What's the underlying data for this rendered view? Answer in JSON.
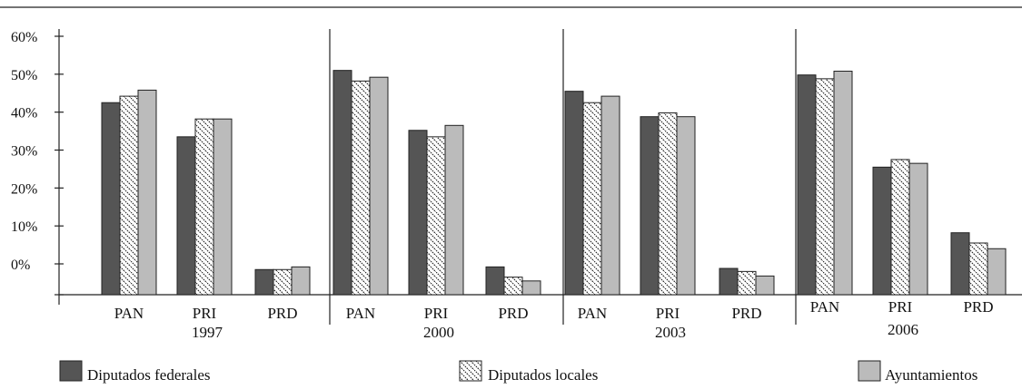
{
  "chart_data": {
    "type": "bar",
    "title": "",
    "xlabel": "",
    "ylabel": "",
    "y_ticks": [
      "60%",
      "50%",
      "40%",
      "30%",
      "20%",
      "10%",
      "0%"
    ],
    "y_tick_values": [
      60,
      50,
      40,
      30,
      20,
      10,
      0
    ],
    "ylim": [
      -8,
      67
    ],
    "grid": false,
    "legend_position": "bottom",
    "groups": [
      {
        "year": "1997",
        "categories": [
          "PAN",
          "PRI",
          "PRD"
        ]
      },
      {
        "year": "2000",
        "categories": [
          "PAN",
          "PRI",
          "PRD"
        ]
      },
      {
        "year": "2003",
        "categories": [
          "PAN",
          "PRI",
          "PRD"
        ]
      },
      {
        "year": "2006",
        "categories": [
          "PAN",
          "PRI",
          "PRD"
        ]
      }
    ],
    "series": [
      {
        "name": "Diputados federales",
        "color": "#555555",
        "pattern": "solid-dark",
        "values": [
          [
            42.5,
            33.5,
            -1.5
          ],
          [
            51,
            35.2,
            -0.8
          ],
          [
            45.5,
            38.8,
            -1.2
          ],
          [
            49.8,
            25.5,
            8.2
          ]
        ]
      },
      {
        "name": "Diputados locales",
        "color": "#ffffff",
        "pattern": "diagonal-hatch",
        "values": [
          [
            44.2,
            38.2,
            -1.5
          ],
          [
            48.2,
            33.5,
            -3.5
          ],
          [
            42.5,
            39.8,
            -2.0
          ],
          [
            48.8,
            27.5,
            5.5
          ]
        ]
      },
      {
        "name": "Ayuntamientos",
        "color": "#bbbbbb",
        "pattern": "solid-light",
        "values": [
          [
            45.8,
            38.2,
            -0.8
          ],
          [
            49.2,
            36.5,
            -4.5
          ],
          [
            44.2,
            38.8,
            -3.2
          ],
          [
            50.8,
            26.5,
            4.0
          ]
        ]
      }
    ]
  }
}
